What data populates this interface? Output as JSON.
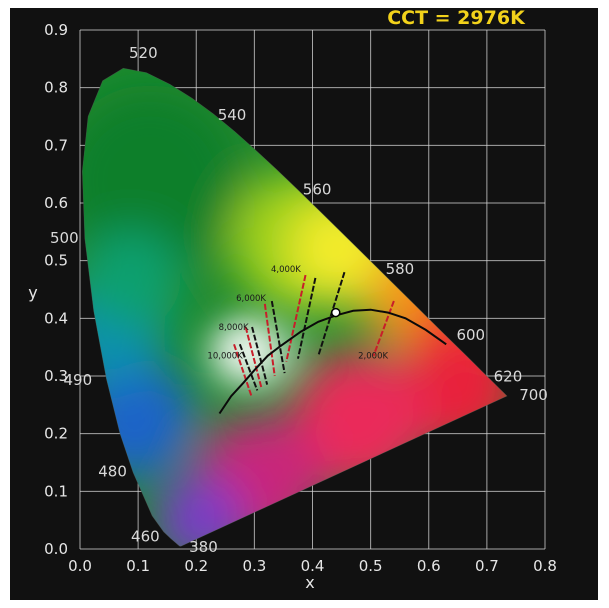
{
  "chart_data": {
    "type": "scatter",
    "title": "CCT = 2976K",
    "xlabel": "x",
    "ylabel": "y",
    "xlim": [
      0,
      0.8
    ],
    "ylim": [
      0,
      0.9
    ],
    "x_ticks": [
      "0.0",
      "0.1",
      "0.2",
      "0.3",
      "0.4",
      "0.5",
      "0.6",
      "0.7",
      "0.8"
    ],
    "y_ticks": [
      "0.0",
      "0.1",
      "0.2",
      "0.3",
      "0.4",
      "0.5",
      "0.6",
      "0.7",
      "0.8",
      "0.9"
    ],
    "grid": true,
    "spectral_locus_labels": [
      {
        "text": "380",
        "x": 0.174,
        "y": 0.005
      },
      {
        "text": "460",
        "x": 0.144,
        "y": 0.03
      },
      {
        "text": "480",
        "x": 0.091,
        "y": 0.133
      },
      {
        "text": "490",
        "x": 0.045,
        "y": 0.295
      },
      {
        "text": "500",
        "x": 0.008,
        "y": 0.538
      },
      {
        "text": "520",
        "x": 0.074,
        "y": 0.834
      },
      {
        "text": "540",
        "x": 0.23,
        "y": 0.754
      },
      {
        "text": "560",
        "x": 0.373,
        "y": 0.625
      },
      {
        "text": "580",
        "x": 0.512,
        "y": 0.487
      },
      {
        "text": "600",
        "x": 0.627,
        "y": 0.373
      },
      {
        "text": "620",
        "x": 0.691,
        "y": 0.308
      },
      {
        "text": "700",
        "x": 0.735,
        "y": 0.265
      }
    ],
    "isotherm_labels": [
      {
        "text": "10,000K",
        "x": 0.28,
        "y": 0.33
      },
      {
        "text": "8,000K",
        "x": 0.29,
        "y": 0.38
      },
      {
        "text": "6,000K",
        "x": 0.32,
        "y": 0.43
      },
      {
        "text": "4,000K",
        "x": 0.38,
        "y": 0.48
      },
      {
        "text": "2,000K",
        "x": 0.53,
        "y": 0.33
      }
    ],
    "highlight_point": {
      "x": 0.44,
      "y": 0.41,
      "cct": 2976
    }
  }
}
